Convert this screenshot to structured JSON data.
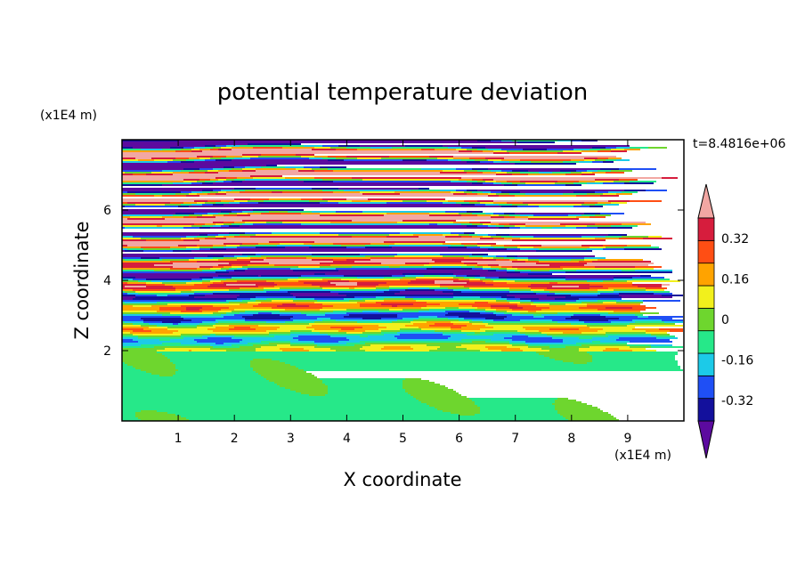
{
  "chart_data": {
    "type": "heatmap",
    "title": "potential temperature deviation",
    "time_label": "t=8.4816e+06",
    "xlabel": "X coordinate",
    "ylabel": "Z coordinate",
    "x_unit": "(x1E4 m)",
    "y_unit": "(x1E4 m)",
    "xlim": [
      0,
      10
    ],
    "ylim": [
      0,
      8
    ],
    "x_ticks": [
      1,
      2,
      3,
      4,
      5,
      6,
      7,
      8,
      9
    ],
    "y_ticks": [
      2,
      4,
      6
    ],
    "colorbar": {
      "tick_labels": [
        "0.32",
        "0.16",
        "0",
        "-0.16",
        "-0.32"
      ],
      "tick_values": [
        0.32,
        0.16,
        0,
        -0.16,
        -0.32
      ],
      "levels": [
        -0.4,
        -0.32,
        -0.24,
        -0.16,
        -0.08,
        0,
        0.08,
        0.16,
        0.24,
        0.32,
        0.4
      ],
      "colors": [
        "#5c0a9f",
        "#13109c",
        "#1f4ff5",
        "#1ccae8",
        "#26e889",
        "#6ed62e",
        "#f2f01c",
        "#ffa300",
        "#ff4e14",
        "#d61d3d",
        "#f2a7a3"
      ],
      "extend": "both"
    },
    "regions": [
      {
        "z_range": [
          0,
          2
        ],
        "description_level": -0.04,
        "dominant_colors": [
          "#26e889",
          "#6ed62e"
        ]
      },
      {
        "z_range": [
          2,
          4.5
        ],
        "dominant_colors": [
          "#1ccae8",
          "#26e889",
          "#6ed62e",
          "#f2f01c",
          "#ffa300",
          "#ff4e14",
          "#13109c"
        ]
      },
      {
        "z_range": [
          4.5,
          8
        ],
        "dominant_colors": [
          "#5c0a9f",
          "#f2a7a3"
        ]
      }
    ]
  }
}
